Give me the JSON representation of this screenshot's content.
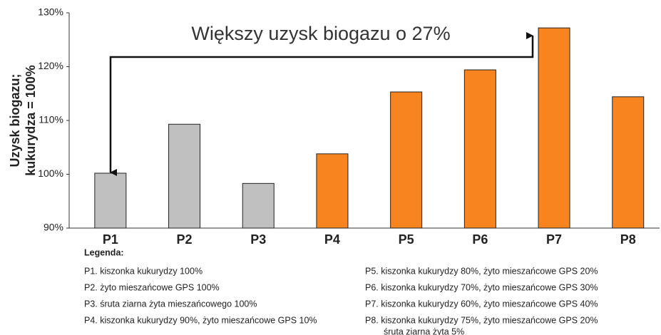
{
  "chart_data": {
    "type": "bar",
    "annotation": "Większy uzysk biogazu o 27%",
    "y_label_lines": [
      "Uzysk biogazu;",
      "kukurydza = 100%"
    ],
    "categories": [
      "P1",
      "P2",
      "P3",
      "P4",
      "P5",
      "P6",
      "P7",
      "P8"
    ],
    "values": [
      100.2,
      109.3,
      98.3,
      103.8,
      115.3,
      119.4,
      127.2,
      114.4
    ],
    "colors": [
      "#c0c0c0",
      "#c0c0c0",
      "#c0c0c0",
      "#f7841f",
      "#f7841f",
      "#f7841f",
      "#f7841f",
      "#f7841f"
    ],
    "ylim": [
      90,
      130
    ],
    "yticks": [
      {
        "value": 90,
        "label": "90%"
      },
      {
        "value": 100,
        "label": "100%"
      },
      {
        "value": 110,
        "label": "110%"
      },
      {
        "value": 120,
        "label": "120%"
      },
      {
        "value": 130,
        "label": "130%"
      }
    ],
    "grid": false,
    "legend": {
      "title": "Legenda:",
      "items": [
        [
          "P1. kiszonka kukurydzy 100%"
        ],
        [
          "P2. żyto mieszańcowe GPS 100%"
        ],
        [
          "P3. śruta ziarna żyta mieszańcowego 100%"
        ],
        [
          "P4. kiszonka kukurydzy 90%, żyto mieszańcowe GPS 10%"
        ],
        [
          "P5. kiszonka kukurydzy 80%, żyto mieszańcowe GPS 20%"
        ],
        [
          "P6. kiszonka kukurydzy 70%, żyto mieszańcowe GPS 30%"
        ],
        [
          "P7. kiszonka kukurydzy 60%, żyto mieszańcowe GPS 40%"
        ],
        [
          "P8. kiszonka kukurydzy 75%, żyto mieszańcowe GPS 20%",
          "śruta ziarna żyta 5%"
        ]
      ]
    }
  }
}
